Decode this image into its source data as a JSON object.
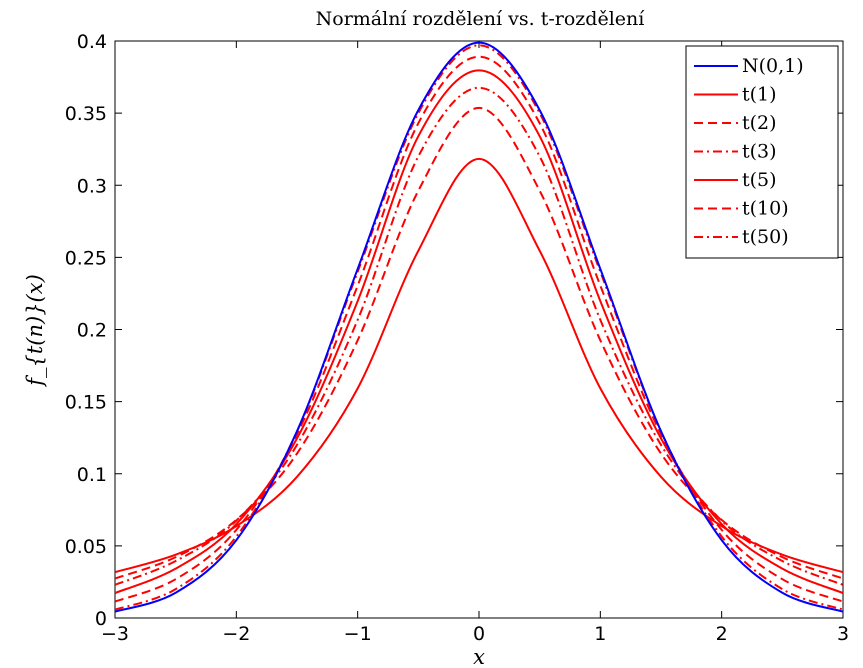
{
  "chart_data": {
    "type": "line",
    "title": "Normální rozdělení vs. t-rozdělení",
    "xlabel": "x",
    "ylabel": "f_{t(n)}(x)",
    "xlim": [
      -3,
      3
    ],
    "ylim": [
      0,
      0.4
    ],
    "xticks": [
      "−3",
      "−2",
      "−1",
      "0",
      "1",
      "2",
      "3"
    ],
    "yticks": [
      "0",
      "0.05",
      "0.1",
      "0.15",
      "0.2",
      "0.25",
      "0.3",
      "0.35",
      "0.4"
    ],
    "grid": false,
    "legend_position": "top-right",
    "x": [
      -3,
      -2.5,
      -2,
      -1.5,
      -1,
      -0.5,
      0,
      0.5,
      1,
      1.5,
      2,
      2.5,
      3
    ],
    "series": [
      {
        "name": "N(0,1)",
        "color": "#0000ff",
        "style": "solid",
        "values": [
          0.0044,
          0.0175,
          0.054,
          0.1295,
          0.242,
          0.3521,
          0.3989,
          0.3521,
          0.242,
          0.1295,
          0.054,
          0.0175,
          0.0044
        ]
      },
      {
        "name": "t(1)",
        "color": "#ff0000",
        "style": "solid",
        "values": [
          0.0318,
          0.0439,
          0.0637,
          0.0979,
          0.1592,
          0.2546,
          0.3183,
          0.2546,
          0.1592,
          0.0979,
          0.0637,
          0.0439,
          0.0318
        ]
      },
      {
        "name": "t(2)",
        "color": "#ff0000",
        "style": "dashed",
        "values": [
          0.0274,
          0.0422,
          0.068,
          0.114,
          0.1925,
          0.2962,
          0.3536,
          0.2962,
          0.1925,
          0.114,
          0.068,
          0.0422,
          0.0274
        ]
      },
      {
        "name": "t(3)",
        "color": "#ff0000",
        "style": "dashdot",
        "values": [
          0.023,
          0.0395,
          0.0675,
          0.12,
          0.2067,
          0.32,
          0.3676,
          0.32,
          0.2067,
          0.12,
          0.0675,
          0.0395,
          0.023
        ]
      },
      {
        "name": "t(5)",
        "color": "#ff0000",
        "style": "solid",
        "values": [
          0.0173,
          0.0342,
          0.0651,
          0.1245,
          0.2197,
          0.334,
          0.3796,
          0.334,
          0.2197,
          0.1245,
          0.0651,
          0.0342,
          0.0173
        ]
      },
      {
        "name": "t(10)",
        "color": "#ff0000",
        "style": "dashed",
        "values": [
          0.0114,
          0.0269,
          0.0611,
          0.1274,
          0.2304,
          0.343,
          0.3891,
          0.343,
          0.2304,
          0.1274,
          0.0611,
          0.0269,
          0.0114
        ]
      },
      {
        "name": "t(50)",
        "color": "#ff0000",
        "style": "dashdot",
        "values": [
          0.0058,
          0.02,
          0.0565,
          0.1293,
          0.24,
          0.35,
          0.397,
          0.35,
          0.24,
          0.1293,
          0.0565,
          0.02,
          0.0058
        ]
      }
    ]
  }
}
